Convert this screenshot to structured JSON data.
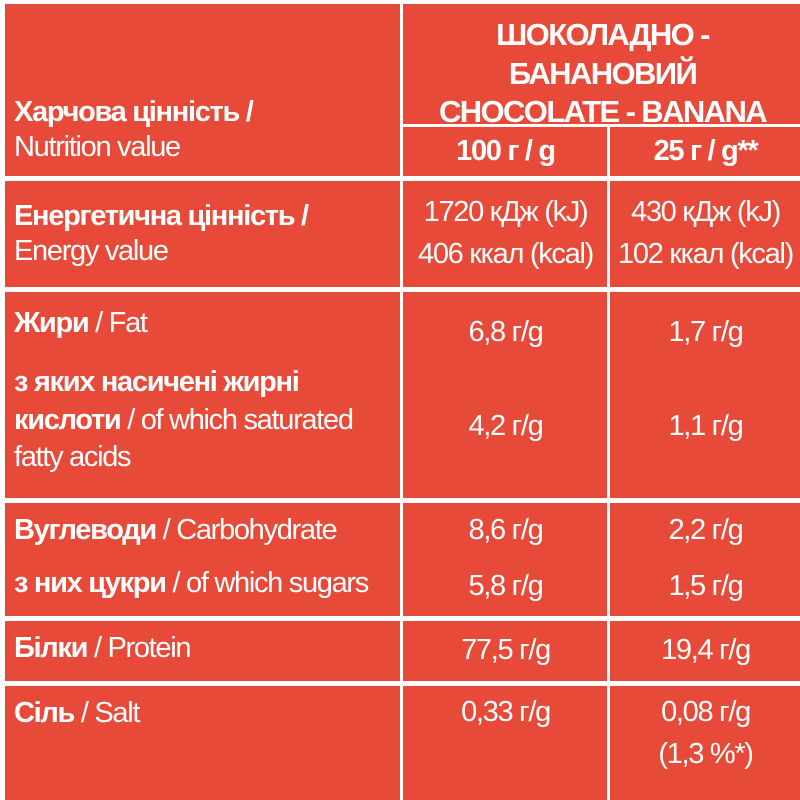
{
  "header": {
    "product_uk": "ШОКОЛАДНО - БАНАНОВИЙ",
    "product_en": "CHOCOLATE - BANANA",
    "label_uk": "Харчова цінність /",
    "label_en": "Nutrition value",
    "col_100": "100 г / g",
    "col_25": "25 г / g**"
  },
  "rows": [
    {
      "label_uk": "Енергетична цінність /",
      "label_en": "Energy value",
      "v100": [
        "1720 кДж (kJ)",
        "406 ккал (kcal)"
      ],
      "v25": [
        "430 кДж (kJ)",
        "102 ккал (kcal)"
      ]
    },
    {
      "label_uk": "Жири",
      "label_en": "/ Fat",
      "v100": "6,8 г/g",
      "v25": "1,7 г/g"
    },
    {
      "label_uk_1": "з яких насичені жирні",
      "label_uk_2": "кислоти",
      "label_en_2": "/ of which saturated",
      "label_en_3": "fatty acids",
      "v100": "4,2 г/g",
      "v25": "1,1 г/g"
    },
    {
      "label_uk": "Вуглеводи",
      "label_en": "/ Carbohydrate",
      "v100": "8,6 г/g",
      "v25": "2,2 г/g"
    },
    {
      "label_uk": "з них цукри",
      "label_en": "/ of which sugars",
      "v100": "5,8 г/g",
      "v25": "1,5 г/g"
    },
    {
      "label_uk": "Білки",
      "label_en": "/ Protein",
      "v100": "77,5 г/g",
      "v25": "19,4 г/g"
    },
    {
      "label_uk": "Сіль",
      "label_en": "/ Salt",
      "v100": "0,33 г/g",
      "v25": [
        "0,08 г/g",
        "(1,3 %*)"
      ]
    }
  ]
}
